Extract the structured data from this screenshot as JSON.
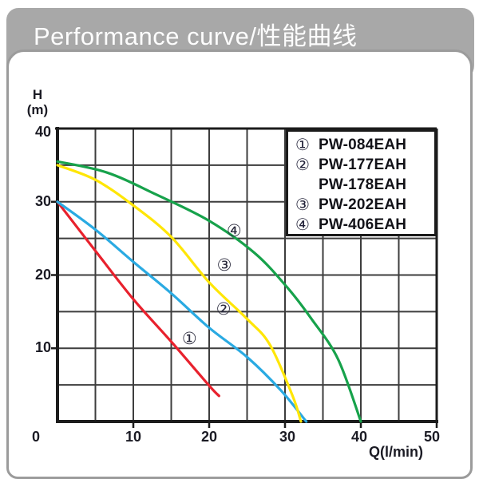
{
  "header": {
    "title": "Performance curve/性能曲线"
  },
  "chart_data": {
    "type": "line",
    "title": "Performance curve/性能曲线",
    "xlabel": "Q(l/min)",
    "ylabel": "H(m)",
    "xlim": [
      0,
      50
    ],
    "ylim": [
      0,
      40
    ],
    "x_ticks": [
      0,
      10,
      20,
      30,
      40,
      50
    ],
    "y_ticks": [
      0,
      10,
      20,
      30,
      40
    ],
    "grid": true,
    "grid_step": 5,
    "legend_position": "top-right-inside",
    "series": [
      {
        "marker": "①",
        "name": "PW-084EAH",
        "color": "#e8212d",
        "points": [
          [
            0,
            30
          ],
          [
            5,
            23.3
          ],
          [
            10,
            16.7
          ],
          [
            15,
            10.9
          ],
          [
            20,
            4.9
          ],
          [
            21.3,
            3.5
          ]
        ]
      },
      {
        "marker": "②",
        "name": "PW-177EAH / PW-178EAH",
        "color": "#2aaae2",
        "points": [
          [
            0,
            30
          ],
          [
            5,
            26.2
          ],
          [
            10,
            21.8
          ],
          [
            15,
            17.5
          ],
          [
            20,
            12.8
          ],
          [
            25,
            8.8
          ],
          [
            29.5,
            4.2
          ],
          [
            32.8,
            0
          ]
        ]
      },
      {
        "marker": "③",
        "name": "PW-202EAH",
        "color": "#ffe606",
        "points": [
          [
            0,
            35
          ],
          [
            5,
            33
          ],
          [
            10,
            29.5
          ],
          [
            15,
            25.2
          ],
          [
            20,
            19
          ],
          [
            25,
            14
          ],
          [
            28,
            10.5
          ],
          [
            31,
            3.5
          ],
          [
            32.1,
            0
          ]
        ]
      },
      {
        "marker": "④",
        "name": "PW-406EAH",
        "color": "#17a24b",
        "points": [
          [
            0,
            35.5
          ],
          [
            6.5,
            34
          ],
          [
            13,
            31
          ],
          [
            20,
            27.4
          ],
          [
            26,
            23
          ],
          [
            30.3,
            18.3
          ],
          [
            33.5,
            14
          ],
          [
            37,
            8.5
          ],
          [
            40,
            0
          ]
        ]
      }
    ]
  },
  "axes": {
    "y_title_line1": "H",
    "y_title_line2": "(m)",
    "y_labels": [
      "40",
      "30",
      "20",
      "10"
    ],
    "origin_label": "0",
    "x_labels": [
      "10",
      "20",
      "30",
      "40",
      "50"
    ],
    "x_unit": "Q(l/min)"
  },
  "legend": {
    "rows": [
      {
        "marker": "①",
        "label": "PW-084EAH"
      },
      {
        "marker": "②",
        "label": "PW-177EAH"
      },
      {
        "marker": "",
        "label": "PW-178EAH"
      },
      {
        "marker": "③",
        "label": "PW-202EAH"
      },
      {
        "marker": "④",
        "label": "PW-406EAH"
      }
    ]
  },
  "curve_markers": [
    {
      "text": "①",
      "q": 17.4,
      "h": 11.3
    },
    {
      "text": "②",
      "q": 21.9,
      "h": 15.4
    },
    {
      "text": "③",
      "q": 22.0,
      "h": 21.4
    },
    {
      "text": "④",
      "q": 23.3,
      "h": 26.0
    }
  ],
  "colors": {
    "header_bg": "#a8a8a8",
    "panel_border": "#9b9b9b",
    "grid": "#3d3d3d",
    "frame": "#1c1c1c",
    "curve_red": "#e8212d",
    "curve_blue": "#2aaae2",
    "curve_yellow": "#ffe606",
    "curve_green": "#17a24b"
  }
}
